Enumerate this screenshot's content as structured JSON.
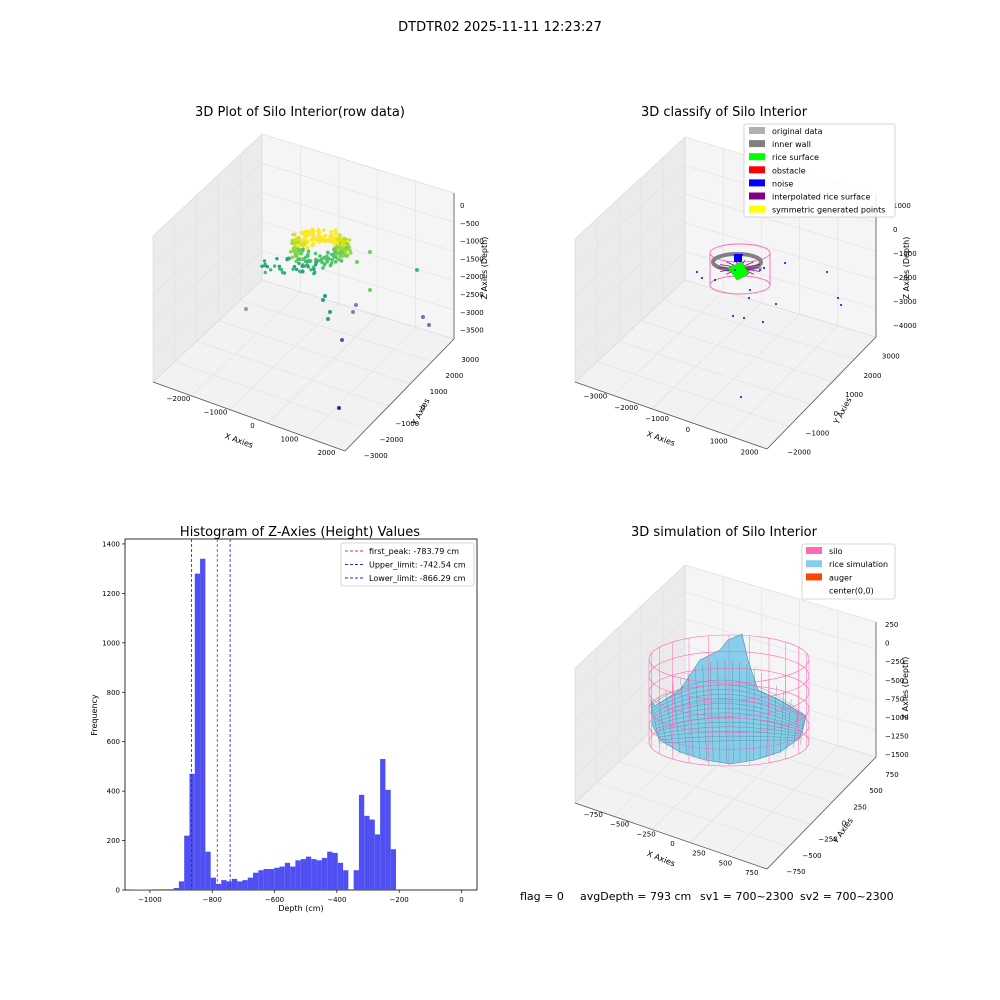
{
  "suptitle": "DTDTR02 2025-11-11 12:23:27",
  "footer": {
    "flag": "flag = 0",
    "avg_depth": "avgDepth = 793 cm",
    "sv1": "sv1 = 700~2300",
    "sv2": "sv2 = 700~2300"
  },
  "colors": {
    "hist_bar": "#5050f2",
    "first_peak": "#e03030",
    "limits": "#2a2ad0",
    "silo": "#ff69b4",
    "rice_simulation": "#87ceeb",
    "auger": "#ff4500",
    "original_data": "#b0b0b0",
    "inner_wall": "#808080",
    "rice_surface": "#00ff00",
    "obstacle": "#ff0000",
    "noise": "#0000ff",
    "interpolated_rice_surface": "#800080",
    "symmetric_generated_points": "#ffff00"
  },
  "chart_data": [
    {
      "type": "scatter",
      "title": "3D Plot of Silo Interior(row data)",
      "xlabel": "X Axies",
      "ylabel": "Y Axies",
      "zlabel": "Z Axies (Depth)",
      "xticks": [
        "−2000",
        "−1000",
        "0",
        "1000",
        "2000"
      ],
      "yticks": [
        "−3000",
        "−2000",
        "−1000",
        "0",
        "1000",
        "2000",
        "3000"
      ],
      "zticks": [
        "0",
        "−500",
        "−1000",
        "−1500",
        "−2000",
        "−2500",
        "−3000",
        "−3500"
      ],
      "xlim": [
        -2500,
        2000
      ],
      "ylim": [
        -3000,
        3000
      ],
      "zlim": [
        -3700,
        200
      ],
      "colormap": "viridis"
    },
    {
      "type": "scatter",
      "title": "3D classify of Silo Interior",
      "xlabel": "X Axies",
      "ylabel": "Y Axies",
      "zlabel": "Z Axies (Depth)",
      "xticks": [
        "−3000",
        "−2000",
        "−1000",
        "0",
        "1000",
        "2000"
      ],
      "yticks": [
        "−2000",
        "−1000",
        "0",
        "1000",
        "2000",
        "3000"
      ],
      "zticks": [
        "1000",
        "0",
        "−1000",
        "−2000",
        "−3000",
        "−4000"
      ],
      "xlim": [
        -3200,
        2500
      ],
      "ylim": [
        -2500,
        3000
      ],
      "zlim": [
        -4300,
        1200
      ],
      "legend_position": "top-right",
      "legend": [
        {
          "label": "original data",
          "color": "#b0b0b0"
        },
        {
          "label": "inner wall",
          "color": "#808080"
        },
        {
          "label": "rice surface",
          "color": "#00ff00"
        },
        {
          "label": "obstacle",
          "color": "#ff0000"
        },
        {
          "label": "noise",
          "color": "#0000ff"
        },
        {
          "label": "interpolated rice surface",
          "color": "#800080"
        },
        {
          "label": "symmetric generated points",
          "color": "#ffff00"
        }
      ]
    },
    {
      "type": "bar",
      "title": "Histogram of Z-Axies (Height) Values",
      "xlabel": "Depth (cm)",
      "ylabel": "Frequency",
      "xlim": [
        -1080,
        50
      ],
      "ylim": [
        0,
        1420
      ],
      "xticks": [
        -1000,
        -800,
        -600,
        -400,
        -200,
        0
      ],
      "yticks": [
        0,
        200,
        400,
        600,
        800,
        1000,
        1200,
        1400
      ],
      "bin_start": -1060,
      "bin_width": 17,
      "values": [
        2,
        2,
        2,
        2,
        3,
        3,
        3,
        3,
        8,
        35,
        220,
        470,
        1280,
        1340,
        155,
        50,
        25,
        40,
        35,
        45,
        35,
        40,
        50,
        70,
        80,
        85,
        85,
        90,
        95,
        110,
        95,
        120,
        125,
        135,
        125,
        120,
        130,
        155,
        150,
        110,
        80,
        3,
        80,
        385,
        300,
        285,
        225,
        530,
        405,
        165
      ],
      "lines": [
        {
          "label": "first_peak: -783.79 cm",
          "x": -783.79,
          "color": "#e03030"
        },
        {
          "label": "Upper_limit: -742.54 cm",
          "x": -742.54,
          "color": "#2a2ad0"
        },
        {
          "label": "Lower_limit: -866.29 cm",
          "x": -866.29,
          "color": "#2a2ad0"
        }
      ],
      "legend_position": "top-right"
    },
    {
      "type": "surface",
      "title": "3D simulation of Silo Interior",
      "xlabel": "X Axies",
      "ylabel": "Y Axies",
      "zlabel": "Z Axies (Depth)",
      "xticks": [
        "−750",
        "−500",
        "−250",
        "0",
        "250",
        "500",
        "750"
      ],
      "yticks": [
        "−750",
        "−500",
        "−250",
        "0",
        "250",
        "500",
        "750"
      ],
      "zticks": [
        "250",
        "0",
        "−250",
        "−500",
        "−750",
        "−1000",
        "−1250",
        "−1500"
      ],
      "xlim": [
        -900,
        900
      ],
      "ylim": [
        -900,
        900
      ],
      "zlim": [
        -1550,
        350
      ],
      "legend_position": "top-right",
      "legend": [
        {
          "label": "silo",
          "color": "#ff69b4"
        },
        {
          "label": "rice simulation",
          "color": "#87ceeb"
        },
        {
          "label": "auger",
          "color": "#ff4500"
        },
        {
          "label": "center(0,0)",
          "color": ""
        }
      ]
    }
  ]
}
